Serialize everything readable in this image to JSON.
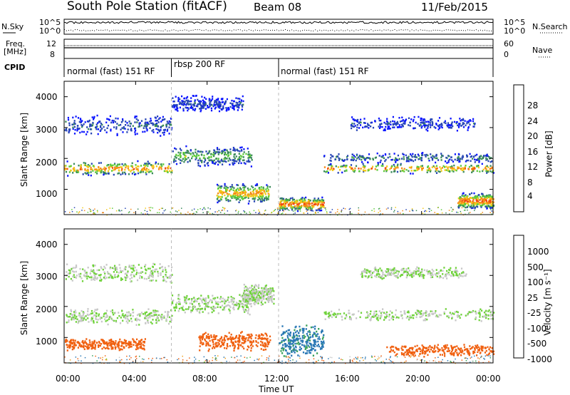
{
  "header": {
    "station": "South Pole Station (fitACF)",
    "beam": "Beam 08",
    "date": "11/Feb/2015"
  },
  "noise_panel": {
    "left_label": "N.Sky",
    "right_label": "N.Search",
    "ytick_top": "10^5",
    "ytick_bottom": "10^0"
  },
  "freq_panel": {
    "left_label_line1": "Freq.",
    "left_label_line2": "[MHz]",
    "ytick_left_top": "12",
    "ytick_left_bottom": "8",
    "right_label": "Nave",
    "ytick_right_top": "60",
    "ytick_right_bottom": "0"
  },
  "cpid_panel": {
    "label": "CPID",
    "segments": [
      {
        "label": "normal (fast) 151 RF",
        "start_hour": 0,
        "end_hour": 6
      },
      {
        "label": "rbsp 200 RF",
        "start_hour": 6,
        "end_hour": 12
      },
      {
        "label": "normal (fast) 151 RF",
        "start_hour": 12,
        "end_hour": 24
      }
    ]
  },
  "x_axis": {
    "label": "Time UT",
    "ticks": [
      "00:00",
      "04:00",
      "08:00",
      "12:00",
      "16:00",
      "20:00",
      "00:00"
    ],
    "tick_hours": [
      0,
      4,
      8,
      12,
      16,
      20,
      24
    ]
  },
  "y_axis": {
    "label": "Slant Range [km]",
    "ticks": [
      "1000",
      "2000",
      "3000",
      "4000"
    ],
    "tick_values": [
      1000,
      2000,
      3000,
      4000
    ],
    "range": [
      180,
      4500
    ]
  },
  "power_colorbar": {
    "label": "Power [dB]",
    "ticks": [
      "4",
      "8",
      "12",
      "16",
      "20",
      "24",
      "28"
    ],
    "colors": [
      "#0a14ff",
      "#2746b5",
      "#3a8a5a",
      "#5ccb3a",
      "#f2c918",
      "#f58a15",
      "#f04a12",
      "#ee0f0f"
    ]
  },
  "velocity_colorbar": {
    "label": "Velocity [m s⁻¹]",
    "ticks": [
      "1000",
      "500",
      "100",
      "25",
      "-25",
      "-100",
      "-500",
      "-1000"
    ],
    "colors": [
      "#1a2fd0",
      "#2a78b5",
      "#37a05a",
      "#6fd23a",
      "#c8c8c8",
      "#f0a020",
      "#f06010",
      "#e81010"
    ]
  },
  "chart_data": [
    {
      "type": "heatmap",
      "panel": "power",
      "title": "South Pole Station (fitACF) Beam 08 11/Feb/2015",
      "xlabel": "Time UT",
      "ylabel": "Slant Range [km]",
      "colorbar_label": "Power [dB]",
      "xlim_hours": [
        0,
        24
      ],
      "ylim_km": [
        180,
        4500
      ],
      "scatter_bands": [
        {
          "t_start": 0.0,
          "t_end": 6.0,
          "range_center": 1700,
          "range_width": 350,
          "power_db": 24
        },
        {
          "t_start": 0.0,
          "t_end": 6.0,
          "range_center": 3100,
          "range_width": 500,
          "power_db": 8
        },
        {
          "t_start": 6.0,
          "t_end": 10.5,
          "range_center": 2100,
          "range_width": 500,
          "power_db": 14
        },
        {
          "t_start": 6.0,
          "t_end": 10.0,
          "range_center": 3800,
          "range_width": 400,
          "power_db": 6
        },
        {
          "t_start": 8.5,
          "t_end": 11.5,
          "range_center": 900,
          "range_width": 500,
          "power_db": 22
        },
        {
          "t_start": 12.0,
          "t_end": 14.5,
          "range_center": 550,
          "range_width": 350,
          "power_db": 26
        },
        {
          "t_start": 14.5,
          "t_end": 24.0,
          "range_center": 1700,
          "range_width": 250,
          "power_db": 24
        },
        {
          "t_start": 14.5,
          "t_end": 24.0,
          "range_center": 2050,
          "range_width": 250,
          "power_db": 10
        },
        {
          "t_start": 16.0,
          "t_end": 23.0,
          "range_center": 3150,
          "range_width": 350,
          "power_db": 6
        },
        {
          "t_start": 22.0,
          "t_end": 24.0,
          "range_center": 650,
          "range_width": 400,
          "power_db": 26
        }
      ]
    },
    {
      "type": "heatmap",
      "panel": "velocity",
      "xlabel": "Time UT",
      "ylabel": "Slant Range [km]",
      "colorbar_label": "Velocity [m s⁻¹]",
      "xlim_hours": [
        0,
        24
      ],
      "ylim_km": [
        180,
        4500
      ],
      "scatter_bands": [
        {
          "t_start": 0.0,
          "t_end": 6.0,
          "range_center": 1700,
          "range_width": 400,
          "velocity": 0
        },
        {
          "t_start": 0.0,
          "t_end": 6.0,
          "range_center": 3100,
          "range_width": 500,
          "velocity": 0
        },
        {
          "t_start": 0.0,
          "t_end": 4.5,
          "range_center": 800,
          "range_width": 300,
          "velocity": -300
        },
        {
          "t_start": 6.0,
          "t_end": 10.5,
          "range_center": 2100,
          "range_width": 500,
          "velocity": 0
        },
        {
          "t_start": 7.5,
          "t_end": 11.5,
          "range_center": 900,
          "range_width": 450,
          "velocity": -300
        },
        {
          "t_start": 10.0,
          "t_end": 11.7,
          "range_center": 2400,
          "range_width": 500,
          "velocity": 0
        },
        {
          "t_start": 12.0,
          "t_end": 14.5,
          "range_center": 900,
          "range_width": 800,
          "velocity": 150
        },
        {
          "t_start": 14.5,
          "t_end": 24.0,
          "range_center": 1750,
          "range_width": 300,
          "velocity": 0
        },
        {
          "t_start": 16.5,
          "t_end": 22.5,
          "range_center": 3100,
          "range_width": 300,
          "velocity": 0
        },
        {
          "t_start": 18.0,
          "t_end": 24.0,
          "range_center": 600,
          "range_width": 300,
          "velocity": -300
        }
      ]
    }
  ]
}
